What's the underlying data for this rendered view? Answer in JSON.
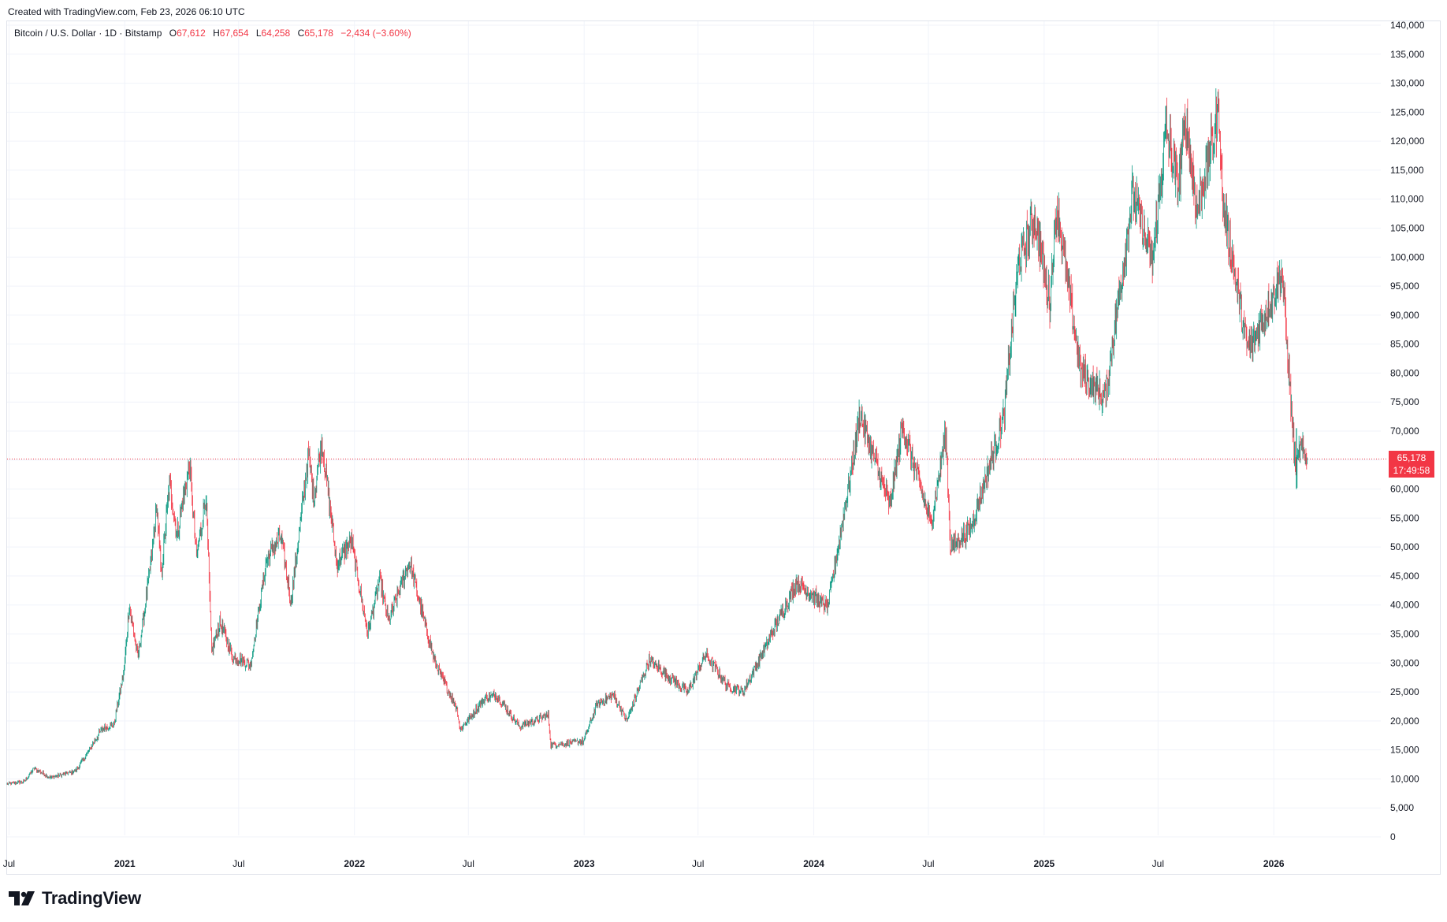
{
  "watermark": {
    "created_text": "Created with TradingView.com, Feb 23, 2026 06:10 UTC"
  },
  "legend": {
    "symbol": "Bitcoin / U.S. Dollar · 1D · Bitstamp",
    "open_label": "O",
    "open": "67,612",
    "high_label": "H",
    "high": "67,654",
    "low_label": "L",
    "low": "64,258",
    "close_label": "C",
    "close": "65,178",
    "change": "−2,434 (−3.60%)"
  },
  "price_tag": {
    "price": "65,178",
    "countdown": "17:49:58"
  },
  "footer": {
    "brand": "TradingView"
  },
  "colors": {
    "up": "#089981",
    "down": "#f23645",
    "grid": "#f0f3fa",
    "text": "#131722"
  },
  "chart_data": {
    "type": "candlestick",
    "symbol": "Bitcoin / U.S. Dollar",
    "interval": "1D",
    "exchange": "Bitstamp",
    "current_price": 65178,
    "y_axis": {
      "range": [
        0,
        140000
      ],
      "ticks": [
        0,
        5000,
        10000,
        15000,
        20000,
        25000,
        30000,
        35000,
        40000,
        45000,
        50000,
        55000,
        60000,
        65000,
        70000,
        75000,
        80000,
        85000,
        90000,
        95000,
        100000,
        105000,
        110000,
        115000,
        120000,
        125000,
        130000,
        135000,
        140000
      ],
      "tick_labels": [
        "0",
        "5,000",
        "10,000",
        "15,000",
        "20,000",
        "25,000",
        "30,000",
        "35,000",
        "40,000",
        "45,000",
        "50,000",
        "55,000",
        "60,000",
        "65,000",
        "70,000",
        "75,000",
        "80,000",
        "85,000",
        "90,000",
        "95,000",
        "100,000",
        "105,000",
        "110,000",
        "115,000",
        "120,000",
        "125,000",
        "130,000",
        "135,000",
        "140,000"
      ],
      "position": "right"
    },
    "x_axis": {
      "range": [
        "2020-06-28",
        "2026-06-20"
      ],
      "ticks": [
        {
          "date": "2020-07-01",
          "label": "Jul",
          "bold": false
        },
        {
          "date": "2021-01-01",
          "label": "2021",
          "bold": true
        },
        {
          "date": "2021-07-01",
          "label": "Jul",
          "bold": false
        },
        {
          "date": "2022-01-01",
          "label": "2022",
          "bold": true
        },
        {
          "date": "2022-07-01",
          "label": "Jul",
          "bold": false
        },
        {
          "date": "2023-01-01",
          "label": "2023",
          "bold": true
        },
        {
          "date": "2023-07-01",
          "label": "Jul",
          "bold": false
        },
        {
          "date": "2024-01-01",
          "label": "2024",
          "bold": true
        },
        {
          "date": "2024-07-01",
          "label": "Jul",
          "bold": false
        },
        {
          "date": "2025-01-01",
          "label": "2025",
          "bold": true
        },
        {
          "date": "2025-07-01",
          "label": "Jul",
          "bold": false
        },
        {
          "date": "2026-01-01",
          "label": "2026",
          "bold": true
        }
      ]
    },
    "grid": true,
    "price_path": [
      [
        "2020-06-28",
        9100
      ],
      [
        "2020-07-25",
        9500
      ],
      [
        "2020-08-10",
        11800
      ],
      [
        "2020-09-05",
        10200
      ],
      [
        "2020-10-15",
        11400
      ],
      [
        "2020-10-30",
        13800
      ],
      [
        "2020-11-25",
        18500
      ],
      [
        "2020-12-15",
        19400
      ],
      [
        "2020-12-31",
        29000
      ],
      [
        "2021-01-08",
        40000
      ],
      [
        "2021-01-22",
        31000
      ],
      [
        "2021-02-10",
        46000
      ],
      [
        "2021-02-21",
        57000
      ],
      [
        "2021-02-28",
        45000
      ],
      [
        "2021-03-13",
        61000
      ],
      [
        "2021-03-25",
        52000
      ],
      [
        "2021-04-14",
        64500
      ],
      [
        "2021-04-25",
        48000
      ],
      [
        "2021-05-10",
        59000
      ],
      [
        "2021-05-19",
        32000
      ],
      [
        "2021-06-01",
        37000
      ],
      [
        "2021-06-22",
        31000
      ],
      [
        "2021-07-20",
        29800
      ],
      [
        "2021-08-14",
        47500
      ],
      [
        "2021-09-06",
        52000
      ],
      [
        "2021-09-22",
        40500
      ],
      [
        "2021-10-20",
        66000
      ],
      [
        "2021-10-28",
        58000
      ],
      [
        "2021-11-10",
        68500
      ],
      [
        "2021-12-04",
        47000
      ],
      [
        "2021-12-27",
        51000
      ],
      [
        "2022-01-22",
        35000
      ],
      [
        "2022-02-10",
        44500
      ],
      [
        "2022-02-24",
        37000
      ],
      [
        "2022-03-29",
        47500
      ],
      [
        "2022-05-09",
        30000
      ],
      [
        "2022-06-13",
        22000
      ],
      [
        "2022-06-18",
        18500
      ],
      [
        "2022-07-28",
        24000
      ],
      [
        "2022-08-14",
        24500
      ],
      [
        "2022-09-20",
        19000
      ],
      [
        "2022-11-05",
        21000
      ],
      [
        "2022-11-09",
        15800
      ],
      [
        "2022-12-31",
        16500
      ],
      [
        "2023-01-21",
        22800
      ],
      [
        "2023-02-16",
        24500
      ],
      [
        "2023-03-10",
        20000
      ],
      [
        "2023-04-14",
        30500
      ],
      [
        "2023-06-15",
        25000
      ],
      [
        "2023-07-13",
        31500
      ],
      [
        "2023-08-17",
        26000
      ],
      [
        "2023-09-11",
        25000
      ],
      [
        "2023-10-24",
        34500
      ],
      [
        "2023-12-05",
        44000
      ],
      [
        "2024-01-23",
        39500
      ],
      [
        "2024-02-28",
        62000
      ],
      [
        "2024-03-14",
        73000
      ],
      [
        "2024-04-13",
        63000
      ],
      [
        "2024-05-01",
        57000
      ],
      [
        "2024-05-21",
        71000
      ],
      [
        "2024-07-05",
        54000
      ],
      [
        "2024-07-29",
        69500
      ],
      [
        "2024-08-05",
        50000
      ],
      [
        "2024-09-06",
        53000
      ],
      [
        "2024-10-29",
        72500
      ],
      [
        "2024-11-12",
        89000
      ],
      [
        "2024-11-22",
        99000
      ],
      [
        "2024-12-17",
        107000
      ],
      [
        "2025-01-10",
        92500
      ],
      [
        "2025-01-21",
        109000
      ],
      [
        "2025-02-28",
        80000
      ],
      [
        "2025-04-08",
        75500
      ],
      [
        "2025-05-22",
        111000
      ],
      [
        "2025-06-22",
        99000
      ],
      [
        "2025-07-14",
        122000
      ],
      [
        "2025-08-02",
        112000
      ],
      [
        "2025-08-14",
        124000
      ],
      [
        "2025-09-01",
        108000
      ],
      [
        "2025-10-06",
        125500
      ],
      [
        "2025-10-11",
        110000
      ],
      [
        "2025-11-20",
        84000
      ],
      [
        "2025-12-01",
        86000
      ],
      [
        "2026-01-14",
        97000
      ],
      [
        "2026-02-05",
        62500
      ],
      [
        "2026-02-11",
        67000
      ],
      [
        "2026-02-23",
        65178
      ]
    ]
  }
}
